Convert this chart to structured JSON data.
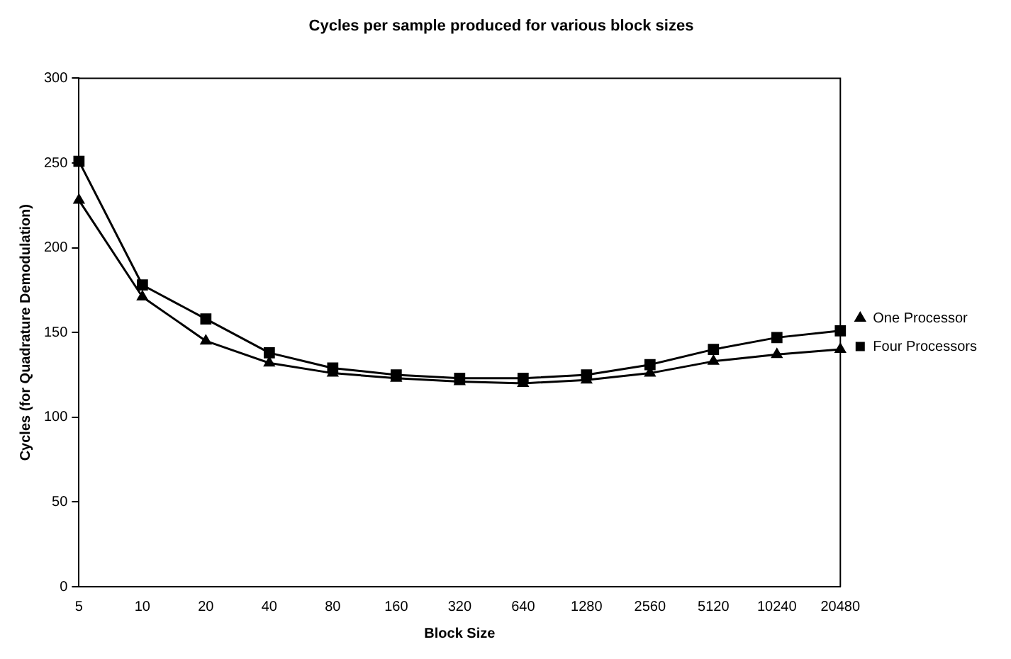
{
  "chart_data": {
    "type": "line",
    "title": "Cycles per sample produced for various block sizes",
    "xlabel": "Block Size",
    "ylabel": "Cycles (for Quadrature Demodulation)",
    "categories": [
      "5",
      "10",
      "20",
      "40",
      "80",
      "160",
      "320",
      "640",
      "1280",
      "2560",
      "5120",
      "10240",
      "20480"
    ],
    "series": [
      {
        "name": "One Processor",
        "color": "#000000",
        "marker": "triangle",
        "values": [
          228,
          171,
          145,
          132,
          126,
          123,
          121,
          120,
          122,
          126,
          133,
          137,
          140
        ]
      },
      {
        "name": "Four Processors",
        "color": "#000000",
        "marker": "square",
        "values": [
          251,
          178,
          158,
          138,
          129,
          125,
          123,
          123,
          125,
          131,
          140,
          147,
          151
        ]
      }
    ],
    "ylim": [
      0,
      300
    ],
    "yticks": [
      0,
      50,
      100,
      150,
      200,
      250,
      300
    ],
    "grid": false,
    "legend": "right",
    "line_style": "solid"
  }
}
